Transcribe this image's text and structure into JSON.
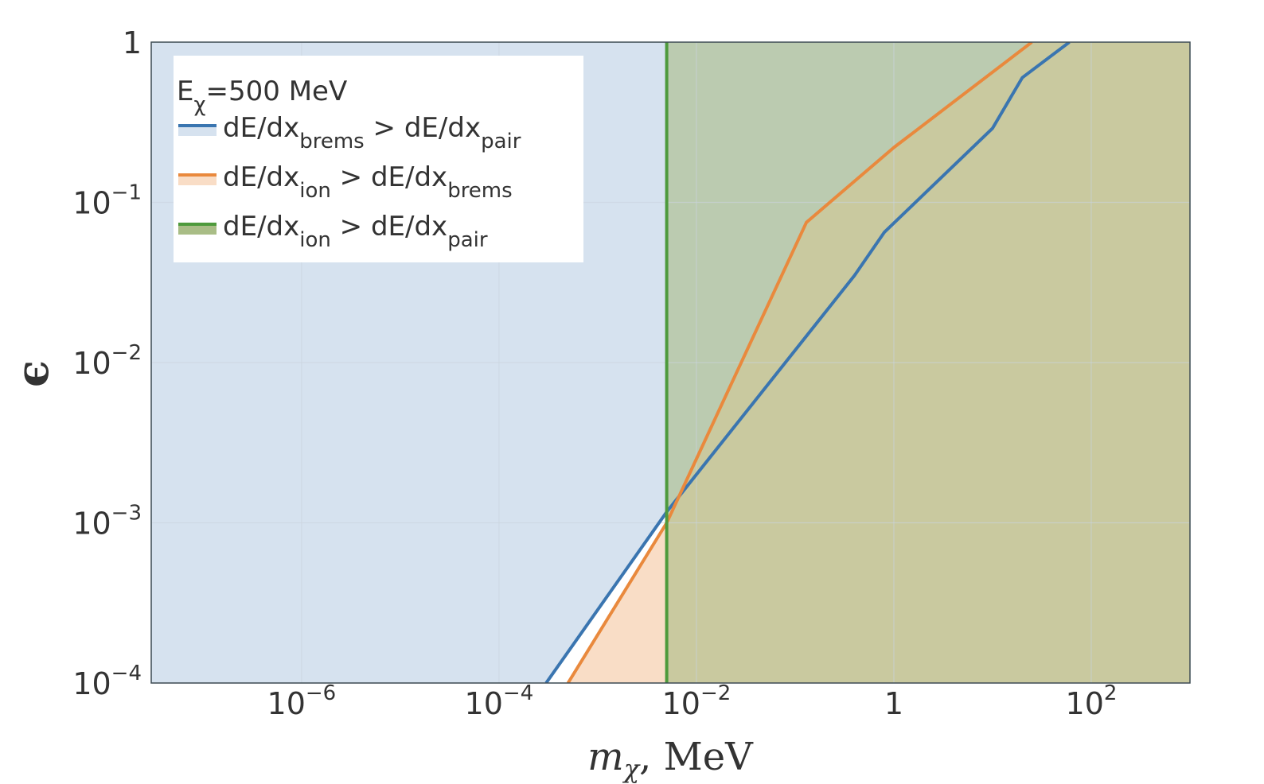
{
  "chart_data": {
    "type": "area",
    "title": "",
    "x_scale": "log",
    "y_scale": "log",
    "xlim": [
      3e-08,
      1000
    ],
    "ylim": [
      0.0001,
      1
    ],
    "grid": true,
    "legend_position": "top-left",
    "xlabel": {
      "base": "m",
      "sub": "χ",
      "suffix": ", MeV"
    },
    "ylabel": "ϵ",
    "x_ticks": [
      {
        "value": 1e-06,
        "base": "10",
        "exp": "−6"
      },
      {
        "value": 0.0001,
        "base": "10",
        "exp": "−4"
      },
      {
        "value": 0.01,
        "base": "10",
        "exp": "−2"
      },
      {
        "value": 1,
        "base": "1",
        "exp": ""
      },
      {
        "value": 100,
        "base": "10",
        "exp": "2"
      }
    ],
    "y_ticks": [
      {
        "value": 1,
        "base": "1",
        "exp": ""
      },
      {
        "value": 0.1,
        "base": "10",
        "exp": "−1"
      },
      {
        "value": 0.01,
        "base": "10",
        "exp": "−2"
      },
      {
        "value": 0.001,
        "base": "10",
        "exp": "−3"
      },
      {
        "value": 0.0001,
        "base": "10",
        "exp": "−4"
      }
    ],
    "legend_title": {
      "base": "E",
      "sub": "χ",
      "rest": "=500 MeV"
    },
    "series": [
      {
        "name": "dE/dx_brems > dE/dx_pair",
        "label_parts": [
          [
            "dE/dx",
            "brems"
          ],
          [
            " > dE/dx",
            "pair"
          ]
        ],
        "color": "#3a75b0",
        "fill": "#d6e2ef",
        "fill_side": "above",
        "x": [
          0.0003,
          0.005,
          0.4,
          0.8,
          10,
          20,
          60
        ],
        "y": [
          0.0001,
          0.00117,
          0.035,
          0.065,
          0.29,
          0.6,
          1.0
        ]
      },
      {
        "name": "dE/dx_ion > dE/dx_brems",
        "label_parts": [
          [
            "dE/dx",
            "ion"
          ],
          [
            " > dE/dx",
            "brems"
          ]
        ],
        "color": "#e9893d",
        "fill": "#f9ddc6",
        "fill_side": "below",
        "x": [
          0.0005,
          0.005,
          0.13,
          1.0,
          25
        ],
        "y": [
          0.0001,
          0.001,
          0.075,
          0.22,
          1.0
        ]
      },
      {
        "name": "dE/dx_ion > dE/dx_pair",
        "label_parts": [
          [
            "dE/dx",
            "ion"
          ],
          [
            " > dE/dx",
            "pair"
          ]
        ],
        "color": "#4e9a3c",
        "fill": "#a9bd86",
        "fill_side": "right",
        "x": [
          0.005,
          0.005
        ],
        "y": [
          0.0001,
          1.0
        ]
      }
    ]
  }
}
